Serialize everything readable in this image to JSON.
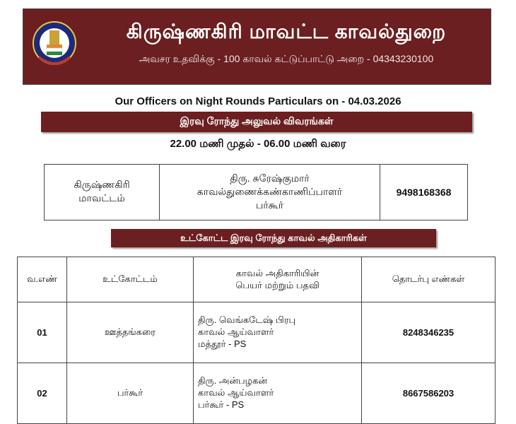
{
  "header": {
    "title": "கிருஷ்ணகிரி மாவட்ட காவல்துறை",
    "subtitle": "அவசர உதவிக்கு - 100 காவல் கட்டுப்பாட்டு அறை - 04343230100",
    "logo_text": "TAMILNADU POLICE"
  },
  "heading": "Our Officers on Night Rounds Particulars on - 04.03.2026",
  "banner1": "இரவு ரோந்து அலுவல் விவரங்கள்",
  "timing": "22.00 மணி முதல் - 06.00 மணி வரை",
  "district": {
    "area": [
      "கிருஷ்ணகிரி",
      "மாவட்டம்"
    ],
    "officer": [
      "திரு. சுரேஷ்குமார்",
      "காவல்துணைக்கண்காணிப்பாளர்",
      "பர்கூர்"
    ],
    "phone": "9498168368"
  },
  "banner2": "உட்கோட்ட இரவு ரோந்து காவல் அதிகாரிகள்",
  "table": {
    "headers": [
      "வ.எண்",
      "உட்கோட்டம்",
      [
        "காவல் அதிகாரியின்",
        "பெயர் மற்றும் பதவி"
      ],
      "தொடர்பு எண்கள்"
    ],
    "rows": [
      {
        "no": "01",
        "subdivision": "ஊத்தங்கரை",
        "officer": [
          "திரு. வெங்கடேஷ் பிரபு",
          "காவல் ஆய்வாளர்",
          "மத்தூர் - PS"
        ],
        "phone": "8248346235"
      },
      {
        "no": "02",
        "subdivision": "பர்கூர்",
        "officer": [
          "திரு. அன்பழகன்",
          "காவல் ஆய்வாளர்",
          "பர்கூர் - PS"
        ],
        "phone": "8667586203"
      }
    ]
  },
  "colors": {
    "maroon": "#6b1f20"
  }
}
